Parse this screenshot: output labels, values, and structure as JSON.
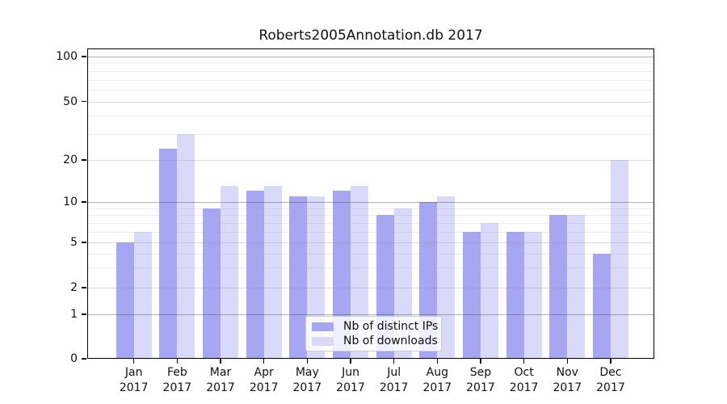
{
  "chart_data": {
    "type": "bar",
    "title": "Roberts2005Annotation.db 2017",
    "categories": [
      "Jan",
      "Feb",
      "Mar",
      "Apr",
      "May",
      "Jun",
      "Jul",
      "Aug",
      "Sep",
      "Oct",
      "Nov",
      "Dec"
    ],
    "x_tick_year": "2017",
    "series": [
      {
        "name": "Nb of distinct IPs",
        "color": "#a6a6f3",
        "values": [
          5,
          24,
          9,
          12,
          11,
          12,
          8,
          10,
          6,
          6,
          8,
          4
        ]
      },
      {
        "name": "Nb of downloads",
        "color": "#d9d9fa",
        "values": [
          6,
          30,
          13,
          13,
          11,
          13,
          9,
          11,
          7,
          6,
          8,
          20
        ]
      }
    ],
    "xlabel": "",
    "ylabel": "",
    "yscale": "log (1-2-5 ticks, 0 baseline)",
    "ylim": [
      0,
      110
    ],
    "yticks": [
      0,
      1,
      2,
      5,
      10,
      20,
      50,
      100
    ],
    "minor_gridline_values": [
      3,
      4,
      6,
      7,
      8,
      9,
      30,
      40,
      60,
      70,
      80,
      90
    ],
    "grid": true,
    "legend_position": "lower center"
  }
}
